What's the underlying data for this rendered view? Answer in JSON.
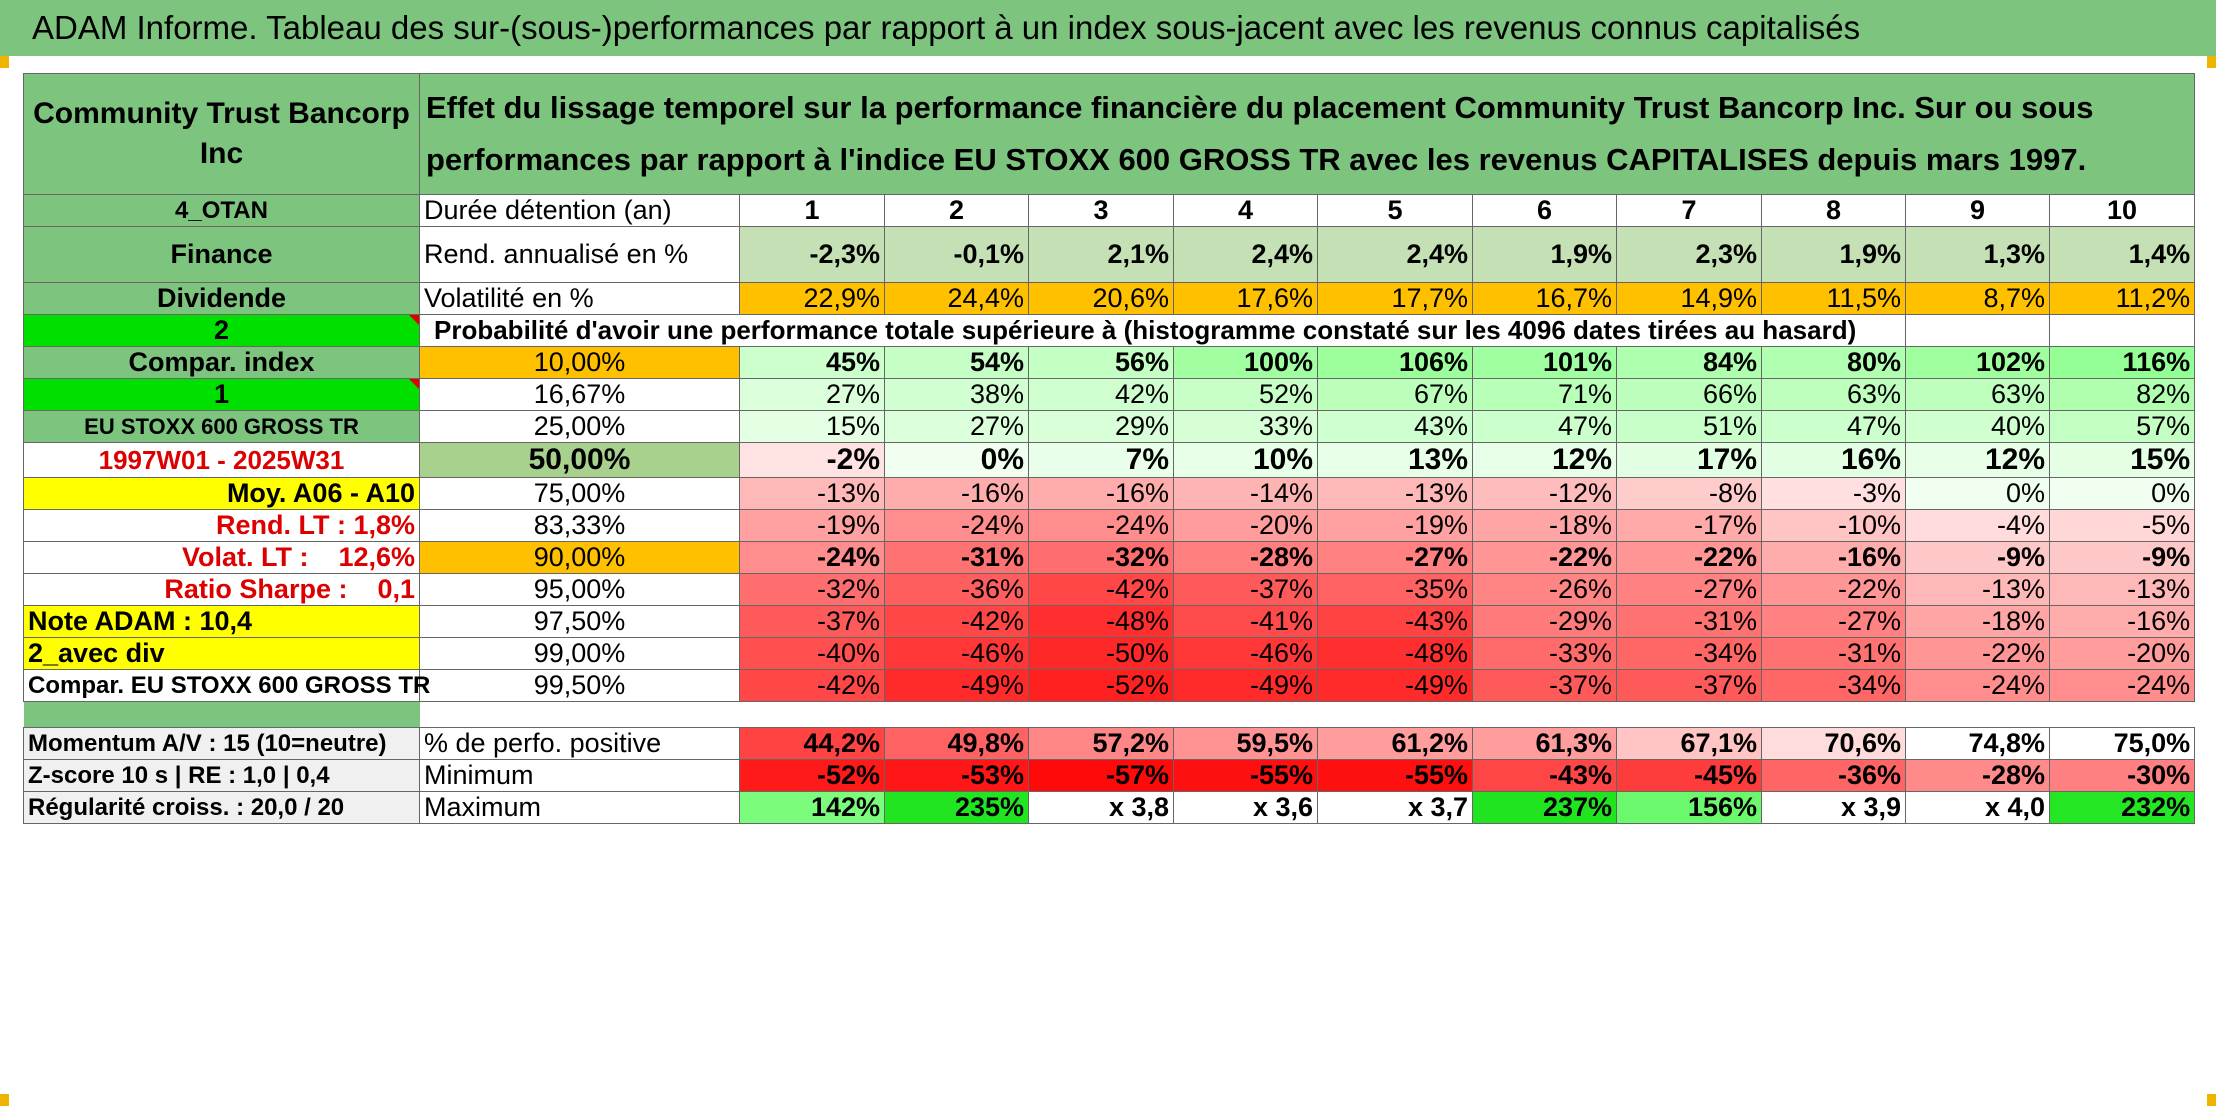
{
  "title": "ADAM Informe. Tableau des sur-(sous-)performances par rapport à un index sous-jacent avec les revenus connus capitalisés",
  "company": "Community Trust Bancorp Inc",
  "description": "Effet du lissage temporel sur la performance financière du placement Community Trust Bancorp Inc. Sur ou sous performances par rapport à l'indice EU STOXX 600 GROSS TR avec les revenus CAPITALISES depuis mars 1997.",
  "left_labels": [
    "4_OTAN",
    "Finance",
    "Dividende",
    "2",
    "Compar. index",
    "1",
    "EU STOXX 600 GROSS TR",
    "1997W01 - 2025W31",
    "Moy. A06 - A10",
    "Rend. LT :    1,8%",
    "Volat. LT :    12,6%",
    "Ratio Sharpe :    0,1",
    "Note ADAM : 10,4",
    "2_avec div",
    "Compar. EU STOXX 600 GROSS TR"
  ],
  "row_labels": {
    "duration": "Durée détention (an)",
    "return": "Rend. annualisé en %",
    "volatility": "Volatilité en %",
    "probability": "Probabilité d'avoir une performance totale supérieure à (histogramme constaté sur les 4096 dates tirées au hasard)"
  },
  "years": [
    "1",
    "2",
    "3",
    "4",
    "5",
    "6",
    "7",
    "8",
    "9",
    "10"
  ],
  "returns": [
    "-2,3%",
    "-0,1%",
    "2,1%",
    "2,4%",
    "2,4%",
    "1,9%",
    "2,3%",
    "1,9%",
    "1,3%",
    "1,4%"
  ],
  "volatility": [
    "22,9%",
    "24,4%",
    "20,6%",
    "17,6%",
    "17,7%",
    "16,7%",
    "14,9%",
    "11,5%",
    "8,7%",
    "11,2%"
  ],
  "percentiles": [
    {
      "p": "10,00%",
      "vals": [
        "45%",
        "54%",
        "56%",
        "100%",
        "106%",
        "101%",
        "84%",
        "80%",
        "102%",
        "116%"
      ]
    },
    {
      "p": "16,67%",
      "vals": [
        "27%",
        "38%",
        "42%",
        "52%",
        "67%",
        "71%",
        "66%",
        "63%",
        "63%",
        "82%"
      ]
    },
    {
      "p": "25,00%",
      "vals": [
        "15%",
        "27%",
        "29%",
        "33%",
        "43%",
        "47%",
        "51%",
        "47%",
        "40%",
        "57%"
      ]
    },
    {
      "p": "50,00%",
      "vals": [
        "-2%",
        "0%",
        "7%",
        "10%",
        "13%",
        "12%",
        "17%",
        "16%",
        "12%",
        "15%"
      ]
    },
    {
      "p": "75,00%",
      "vals": [
        "-13%",
        "-16%",
        "-16%",
        "-14%",
        "-13%",
        "-12%",
        "-8%",
        "-3%",
        "0%",
        "0%"
      ]
    },
    {
      "p": "83,33%",
      "vals": [
        "-19%",
        "-24%",
        "-24%",
        "-20%",
        "-19%",
        "-18%",
        "-17%",
        "-10%",
        "-4%",
        "-5%"
      ]
    },
    {
      "p": "90,00%",
      "vals": [
        "-24%",
        "-31%",
        "-32%",
        "-28%",
        "-27%",
        "-22%",
        "-22%",
        "-16%",
        "-9%",
        "-9%"
      ]
    },
    {
      "p": "95,00%",
      "vals": [
        "-32%",
        "-36%",
        "-42%",
        "-37%",
        "-35%",
        "-26%",
        "-27%",
        "-22%",
        "-13%",
        "-13%"
      ]
    },
    {
      "p": "97,50%",
      "vals": [
        "-37%",
        "-42%",
        "-48%",
        "-41%",
        "-43%",
        "-29%",
        "-31%",
        "-27%",
        "-18%",
        "-16%"
      ]
    },
    {
      "p": "99,00%",
      "vals": [
        "-40%",
        "-46%",
        "-50%",
        "-46%",
        "-48%",
        "-33%",
        "-34%",
        "-31%",
        "-22%",
        "-20%"
      ]
    },
    {
      "p": "99,50%",
      "vals": [
        "-42%",
        "-49%",
        "-52%",
        "-49%",
        "-49%",
        "-37%",
        "-37%",
        "-34%",
        "-24%",
        "-24%"
      ]
    }
  ],
  "bottom": [
    {
      "left": "Momentum A/V : 15 (10=neutre)",
      "label": "% de perfo. positive",
      "vals": [
        "44,2%",
        "49,8%",
        "57,2%",
        "59,5%",
        "61,2%",
        "61,3%",
        "67,1%",
        "70,6%",
        "74,8%",
        "75,0%"
      ],
      "colors": [
        "#ff4343",
        "#ff6262",
        "#ff8686",
        "#ff9393",
        "#ff9d9d",
        "#ff9d9d",
        "#ffc4c4",
        "#ffdcdc",
        "#ffffff",
        "#ffffff"
      ]
    },
    {
      "left": "Z-score 10 s | RE : 1,0 | 0,4",
      "label": "Minimum",
      "vals": [
        "-52%",
        "-53%",
        "-57%",
        "-55%",
        "-55%",
        "-43%",
        "-45%",
        "-36%",
        "-28%",
        "-30%"
      ],
      "colors": [
        "#ff1a1a",
        "#ff1717",
        "#ff0a0a",
        "#ff1010",
        "#ff1010",
        "#ff4646",
        "#ff3c3c",
        "#ff6565",
        "#ff8a8a",
        "#ff8080"
      ]
    },
    {
      "left": "Régularité croiss. : 20,0 / 20",
      "label": "Maximum",
      "vals": [
        "142%",
        "235%",
        "x 3,8",
        "x 3,6",
        "x 3,7",
        "237%",
        "156%",
        "x 3,9",
        "x 4,0",
        "232%"
      ],
      "colors": [
        "#7cfc7c",
        "#22e522",
        "#ffffff",
        "#ffffff",
        "#ffffff",
        "#1fe41f",
        "#6cf86c",
        "#ffffff",
        "#ffffff",
        "#25e625"
      ]
    }
  ],
  "colors": {
    "header_green": "#7dc47f",
    "bright_green": "#00e000",
    "yellow": "#ffff00",
    "orange": "#ffc000",
    "red_text": "#dd0000"
  }
}
